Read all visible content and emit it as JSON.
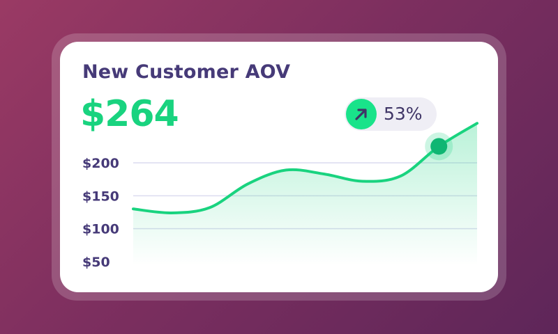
{
  "card": {
    "title": "New Customer AOV",
    "value": "$264",
    "change": {
      "text": "53%",
      "direction": "up",
      "icon": "arrow-up-right-icon"
    }
  },
  "colors": {
    "accent": "#19d37f",
    "title": "#463a78",
    "badge_bg": "#efeef5",
    "badge_icon_bg": "#19e38a"
  },
  "chart_data": {
    "type": "area",
    "title": "",
    "xlabel": "",
    "ylabel": "",
    "ylim": [
      50,
      200
    ],
    "yticks": [
      200,
      150,
      100,
      50
    ],
    "ytick_labels": [
      "$200",
      "$150",
      "$100",
      "$50"
    ],
    "grid": true,
    "x": [
      0,
      1,
      2,
      3,
      4,
      5,
      6,
      7,
      8,
      9
    ],
    "series": [
      {
        "values": [
          130,
          124,
          132,
          168,
          189,
          183,
          172,
          180,
          225,
          260
        ],
        "highlight_index": 8
      }
    ]
  }
}
